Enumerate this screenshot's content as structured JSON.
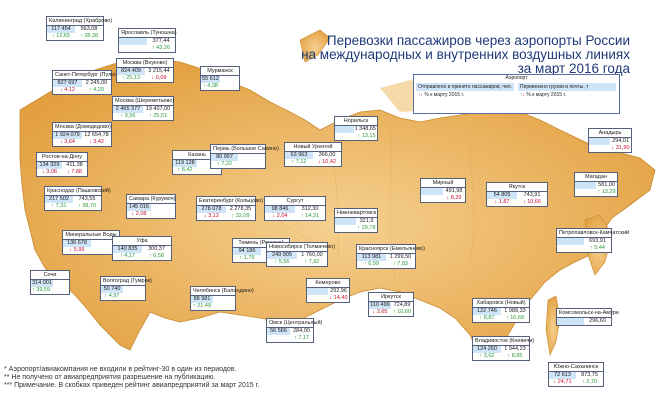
{
  "title_lines": [
    "Перевозки пассажиров через аэропорты России",
    "на международных и внутренних воздушных линиях",
    "за март 2016 года"
  ],
  "legend": {
    "header": "Аэропорт",
    "col1_top": "Отправлено и принято пассажиров, чел.",
    "col1_bottom": "% к марту 2015 г.",
    "col2_top": "Перевезено грузов и почты, т",
    "col2_bottom": "% к марту 2015 г."
  },
  "airports": [
    {
      "name": "Калининград (Храброво)",
      "pax": "117 454",
      "cargo": "563,08",
      "pax_chg": "↑ 12,65",
      "cargo_chg": "↑ 28,38"
    },
    {
      "name": "Ярославль (Туношна)",
      "pax": "",
      "cargo": "377,44",
      "pax_chg": "",
      "cargo_chg": "↑ 43,26"
    },
    {
      "name": "Санкт-Петербург (Пулково)",
      "pax": "827 697",
      "cargo": "2 245,00",
      "pax_chg": "↓ 4,12",
      "cargo_chg": "↑ 4,20"
    },
    {
      "name": "Москва (Внуково)",
      "pax": "824 409",
      "cargo": "3 215,44",
      "pax_chg": "↑ 25,13",
      "cargo_chg": "↓ 0,09"
    },
    {
      "name": "Мурманск",
      "pax": "55 612",
      "cargo": "",
      "pax_chg": "↑ 4,38",
      "cargo_chg": ""
    },
    {
      "name": "Москва (Шереметьево)",
      "pax": "2 465 377",
      "cargo": "19 407,00",
      "pax_chg": "↑ 9,56",
      "cargo_chg": "↑ 25,51"
    },
    {
      "name": "Москва (Домодедово)",
      "pax": "1 924 079",
      "cargo": "12 654,78",
      "pax_chg": "↓ 3,64",
      "cargo_chg": "↓ 3,42"
    },
    {
      "name": "Ростов-на-Дону",
      "pax": "134 329",
      "cargo": "411,38",
      "pax_chg": "↓ 3,08",
      "cargo_chg": "↓ 7,88"
    },
    {
      "name": "Краснодар (Пашковский)",
      "pax": "217 502",
      "cargo": "743,55",
      "pax_chg": "↑ 7,31",
      "cargo_chg": "↑ 38,70"
    },
    {
      "name": "Минеральные Воды",
      "pax": "136 678",
      "cargo": "",
      "pax_chg": "↓ 5,99",
      "cargo_chg": ""
    },
    {
      "name": "Сочи",
      "pax": "314 001",
      "cargo": "",
      "pax_chg": "↑ 39,59",
      "cargo_chg": ""
    },
    {
      "name": "Казань",
      "pax": "119 128",
      "cargo": "",
      "pax_chg": "↑ 8,42",
      "cargo_chg": ""
    },
    {
      "name": "Самара (Курумоч)",
      "pax": "145 016",
      "cargo": "",
      "pax_chg": "↓ 2,08",
      "cargo_chg": ""
    },
    {
      "name": "Уфа",
      "pax": "140 835",
      "cargo": "300,37",
      "pax_chg": "↑ 4,17",
      "cargo_chg": "↑ 0,58"
    },
    {
      "name": "Волгоград (Гумрак)",
      "pax": "50 740",
      "cargo": "",
      "pax_chg": "↑ 4,97",
      "cargo_chg": ""
    },
    {
      "name": "Пермь (Большое Савино)",
      "pax": "80 957",
      "cargo": "",
      "pax_chg": "↑ 7,22",
      "cargo_chg": ""
    },
    {
      "name": "Екатеринбург (Кольцово)",
      "pax": "278 078",
      "cargo": "2 278,35",
      "pax_chg": "↓ 3,12",
      "cargo_chg": "↑ 32,09"
    },
    {
      "name": "Челябинск (Баландино)",
      "pax": "88 981",
      "cargo": "",
      "pax_chg": "↑ 21,49",
      "cargo_chg": ""
    },
    {
      "name": "Тюмень (Рощино)",
      "pax": "94 186",
      "cargo": "336,30",
      "pax_chg": "↑ 1,79",
      "cargo_chg": "↑ 2,77"
    },
    {
      "name": "Новый Уренгой",
      "pax": "63 963",
      "cargo": "366,00",
      "pax_chg": "↑ 7,12",
      "cargo_chg": "↓ 10,42"
    },
    {
      "name": "Сургут",
      "pax": "98 846",
      "cargo": "312,30",
      "pax_chg": "↓ 2,04",
      "cargo_chg": "↑ 14,31"
    },
    {
      "name": "Нижневартовск",
      "pax": "",
      "cargo": "321,9",
      "pax_chg": "",
      "cargo_chg": "↑ 29,78"
    },
    {
      "name": "Новосибирск (Толмачево)",
      "pax": "249 905",
      "cargo": "1 760,00",
      "pax_chg": "↑ 5,56",
      "cargo_chg": "↑ 7,92"
    },
    {
      "name": "Омск (Центральный)",
      "pax": "56 566",
      "cargo": "284,00",
      "pax_chg": "",
      "cargo_chg": "↑ 7,17"
    },
    {
      "name": "Кемерово",
      "pax": "",
      "cargo": "292,96",
      "pax_chg": "",
      "cargo_chg": "↓ 14,40"
    },
    {
      "name": "Красноярск (Емельяново)",
      "pax": "113 981",
      "cargo": "1 299,50",
      "pax_chg": "↑ 6,99",
      "cargo_chg": "↑ 7,83"
    },
    {
      "name": "Иркутск",
      "pax": "110 499",
      "cargo": "724,89",
      "pax_chg": "↓ 2,65",
      "cargo_chg": "↑ 10,60"
    },
    {
      "name": "Норильск",
      "pax": "",
      "cargo": "1 348,65",
      "pax_chg": "",
      "cargo_chg": "↑ 13,15"
    },
    {
      "name": "Мирный",
      "pax": "",
      "cargo": "491,98",
      "pax_chg": "",
      "cargo_chg": "↓ 8,29"
    },
    {
      "name": "Якутск",
      "pax": "54 805",
      "cargo": "743,91",
      "pax_chg": "↓ 1,87",
      "cargo_chg": "↓ 10,66"
    },
    {
      "name": "Анадырь",
      "pax": "",
      "cargo": "294,01",
      "pax_chg": "",
      "cargo_chg": "↓ 31,90"
    },
    {
      "name": "Магадан",
      "pax": "",
      "cargo": "581,00",
      "pax_chg": "",
      "cargo_chg": "↑ 13,29"
    },
    {
      "name": "Петропавловск-Камчатский",
      "pax": "",
      "cargo": "693,91",
      "pax_chg": "",
      "cargo_chg": "↑ 5,44"
    },
    {
      "name": "Хабаровск (Новый)",
      "pax": "122 746",
      "cargo": "1 988,33",
      "pax_chg": "↑ 8,87",
      "cargo_chg": "↑ 16,68"
    },
    {
      "name": "Комсомольск-на-Амуре",
      "pax": "",
      "cargo": "296,60",
      "pax_chg": "",
      "cargo_chg": ""
    },
    {
      "name": "Владивосток (Кневичи)",
      "pax": "124 260",
      "cargo": "1 944,23",
      "pax_chg": "↑ 3,62",
      "cargo_chg": "↑ 8,85"
    },
    {
      "name": "Южно-Сахалинск",
      "pax": "72 613",
      "cargo": "873,75",
      "pax_chg": "↓ 24,71",
      "cargo_chg": "↑ 2,70"
    }
  ],
  "notes": [
    "* Аэропорт/авиакомпания не входили в рейтинг-30 в один из периодов.",
    "** Не получено от авиапредприятия разрешение на публикацию.",
    "*** Примечание. В скобках приведен рейтинг авиапредприятий за март 2015 г."
  ],
  "colors": {
    "land": "#e8a94a",
    "land_light": "#f5d090",
    "sea": "#ffffff",
    "title": "#1f3a78",
    "cell_blue": "#cfe4f6",
    "up": "#2c9a3a",
    "down": "#c8102e"
  }
}
